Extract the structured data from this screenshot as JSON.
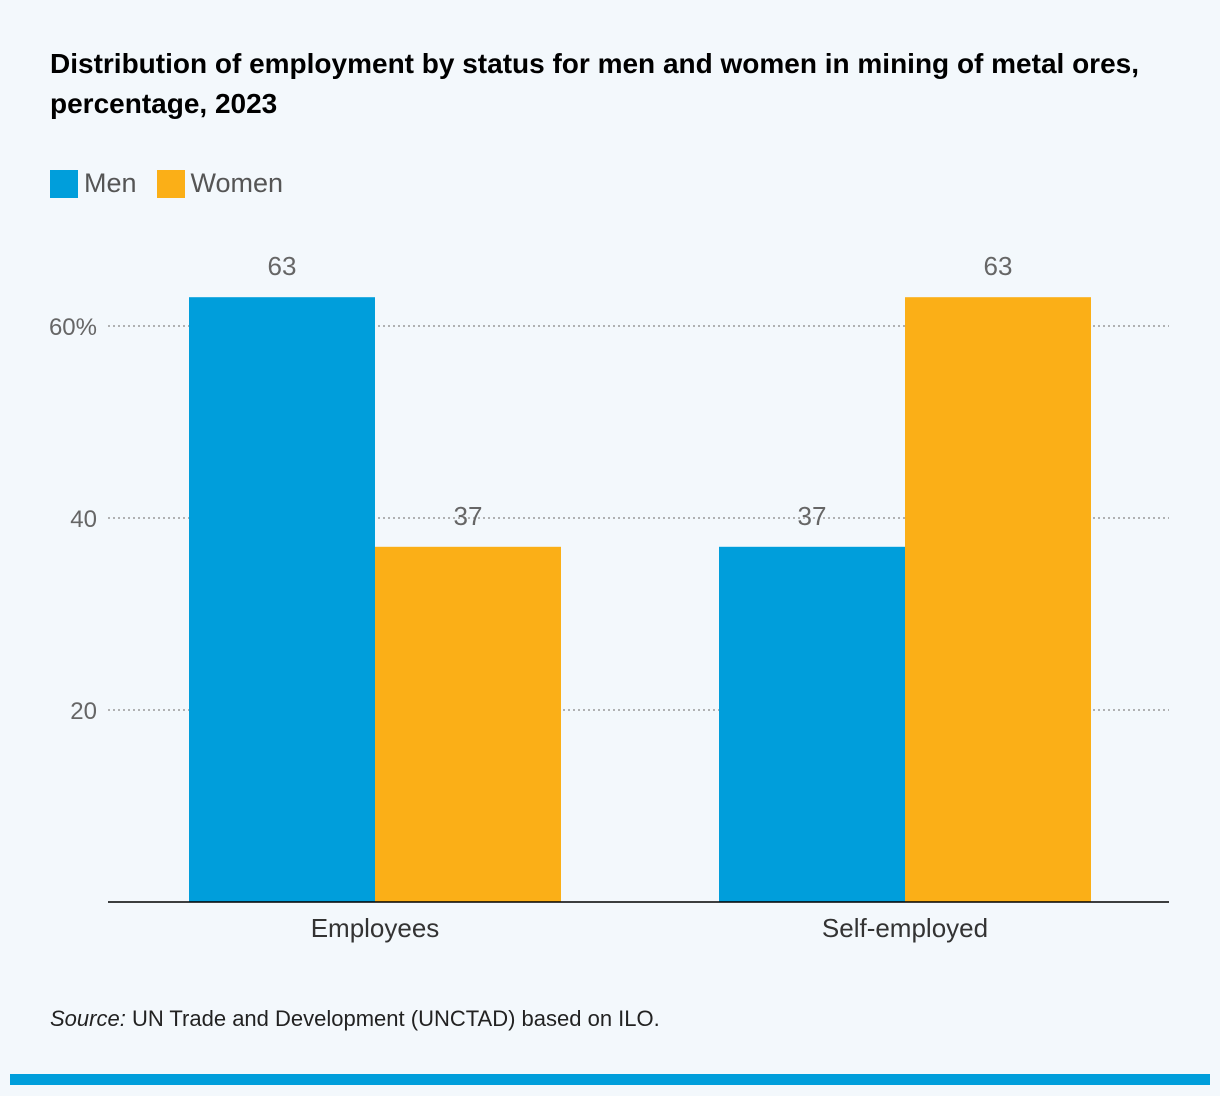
{
  "chart_data": {
    "type": "bar",
    "title": "Distribution of employment by status for men and women in mining of metal ores, percentage, 2023",
    "categories": [
      "Employees",
      "Self-employed"
    ],
    "series": [
      {
        "name": "Men",
        "values": [
          63,
          37
        ],
        "color": "#009edb"
      },
      {
        "name": "Women",
        "values": [
          37,
          63
        ],
        "color": "#fbaf17"
      }
    ],
    "yticks": [
      {
        "value": 20,
        "label": "20"
      },
      {
        "value": 40,
        "label": "40"
      },
      {
        "value": 60,
        "label": "60%"
      }
    ],
    "ylim": [
      0,
      70
    ],
    "grid": true,
    "legend": "top-left",
    "xlabel": "",
    "ylabel": ""
  },
  "source_label": "Source:",
  "source_text": " UN Trade and Development (UNCTAD) based on ILO.",
  "accent_color": "#009edb"
}
